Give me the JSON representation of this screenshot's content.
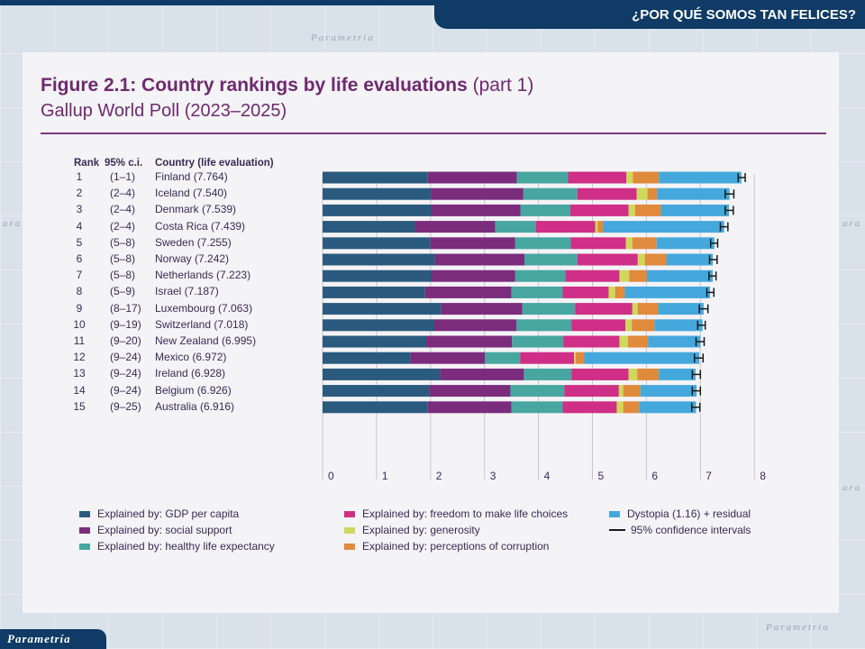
{
  "banner": {
    "title": "¿POR QUÉ SOMOS TAN FELICES?"
  },
  "logo": {
    "text": "Parametría"
  },
  "watermarks": [
    "Parametria",
    "Parametria",
    "ara",
    "ara",
    "ara"
  ],
  "figure": {
    "title": "Figure 2.1: Country rankings by life evaluations",
    "title_part": "(part 1)",
    "subtitle": "Gallup World Poll (2023–2025)"
  },
  "headers": {
    "rank": "Rank",
    "ci": "95% c.i.",
    "country": "Country (life evaluation)"
  },
  "colors": {
    "gdp": "#2a5b7e",
    "social": "#7b2c7d",
    "health": "#48a6a0",
    "freedom": "#cf2f86",
    "generosity": "#cfd85a",
    "corruption": "#e08a3c",
    "dystopia": "#45a8dc",
    "ci": "#1a1a1a",
    "banner": "#0f3b66",
    "title": "#6e2a6f"
  },
  "chart_data": {
    "type": "bar",
    "orientation": "horizontal",
    "stacked": true,
    "xlim": [
      0,
      8
    ],
    "xticks": [
      0,
      1,
      2,
      3,
      4,
      5,
      6,
      7,
      8
    ],
    "series_names": [
      "gdp",
      "social",
      "health",
      "freedom",
      "generosity",
      "corruption",
      "dystopia"
    ],
    "rows": [
      {
        "rank": "1",
        "ci": "(1–1)",
        "country": "Finland (7.764)",
        "score": 7.764,
        "ci_low": 7.7,
        "ci_high": 7.83,
        "components": [
          1.95,
          1.65,
          0.95,
          1.08,
          0.12,
          0.48,
          1.53
        ]
      },
      {
        "rank": "2",
        "ci": "(2–4)",
        "country": "Iceland (7.540)",
        "score": 7.54,
        "ci_low": 7.46,
        "ci_high": 7.62,
        "components": [
          2.01,
          1.71,
          1.0,
          1.1,
          0.2,
          0.18,
          1.34
        ]
      },
      {
        "rank": "3",
        "ci": "(2–4)",
        "country": "Denmark (7.539)",
        "score": 7.539,
        "ci_low": 7.46,
        "ci_high": 7.61,
        "components": [
          2.02,
          1.65,
          0.92,
          1.08,
          0.12,
          0.48,
          1.26
        ]
      },
      {
        "rank": "4",
        "ci": "(2–4)",
        "country": "Costa Rica (7.439)",
        "score": 7.439,
        "ci_low": 7.37,
        "ci_high": 7.51,
        "components": [
          1.72,
          1.48,
          0.75,
          1.1,
          0.05,
          0.1,
          2.24
        ]
      },
      {
        "rank": "5",
        "ci": "(5–8)",
        "country": "Sweden (7.255)",
        "score": 7.255,
        "ci_low": 7.19,
        "ci_high": 7.32,
        "components": [
          2.0,
          1.57,
          1.03,
          1.02,
          0.12,
          0.45,
          1.07
        ]
      },
      {
        "rank": "6",
        "ci": "(5–8)",
        "country": "Norway (7.242)",
        "score": 7.242,
        "ci_low": 7.17,
        "ci_high": 7.31,
        "components": [
          2.08,
          1.66,
          0.98,
          1.12,
          0.13,
          0.4,
          0.86
        ]
      },
      {
        "rank": "7",
        "ci": "(5–8)",
        "country": "Netherlands (7.223)",
        "score": 7.223,
        "ci_low": 7.16,
        "ci_high": 7.29,
        "components": [
          2.02,
          1.55,
          0.93,
          1.0,
          0.18,
          0.33,
          1.22
        ]
      },
      {
        "rank": "8",
        "ci": "(5–9)",
        "country": "Israel (7.187)",
        "score": 7.187,
        "ci_low": 7.12,
        "ci_high": 7.25,
        "components": [
          1.9,
          1.6,
          0.95,
          0.85,
          0.12,
          0.18,
          1.58
        ]
      },
      {
        "rank": "9",
        "ci": "(8–17)",
        "country": "Luxembourg (7.063)",
        "score": 7.063,
        "ci_low": 6.98,
        "ci_high": 7.14,
        "components": [
          2.2,
          1.5,
          0.98,
          1.06,
          0.1,
          0.38,
          0.84
        ]
      },
      {
        "rank": "10",
        "ci": "(9–19)",
        "country": "Switzerland (7.018)",
        "score": 7.018,
        "ci_low": 6.95,
        "ci_high": 7.09,
        "components": [
          2.07,
          1.52,
          1.02,
          1.0,
          0.12,
          0.42,
          0.89
        ]
      },
      {
        "rank": "11",
        "ci": "(9–20)",
        "country": "New Zealand (6.995)",
        "score": 6.995,
        "ci_low": 6.92,
        "ci_high": 7.07,
        "components": [
          1.92,
          1.59,
          0.95,
          1.04,
          0.16,
          0.37,
          0.97
        ]
      },
      {
        "rank": "12",
        "ci": "(9–24)",
        "country": "Mexico (6.972)",
        "score": 6.972,
        "ci_low": 6.89,
        "ci_high": 7.05,
        "components": [
          1.63,
          1.38,
          0.65,
          1.0,
          0.03,
          0.16,
          2.13
        ]
      },
      {
        "rank": "13",
        "ci": "(9–24)",
        "country": "Ireland (6.928)",
        "score": 6.928,
        "ci_low": 6.85,
        "ci_high": 7.0,
        "components": [
          2.18,
          1.55,
          0.88,
          1.06,
          0.16,
          0.4,
          0.68
        ]
      },
      {
        "rank": "14",
        "ci": "(9–24)",
        "country": "Belgium (6.926)",
        "score": 6.926,
        "ci_low": 6.85,
        "ci_high": 7.0,
        "components": [
          1.98,
          1.5,
          1.0,
          1.01,
          0.08,
          0.32,
          1.04
        ]
      },
      {
        "rank": "15",
        "ci": "(9–25)",
        "country": "Australia (6.916)",
        "score": 6.916,
        "ci_low": 6.84,
        "ci_high": 6.99,
        "components": [
          1.95,
          1.55,
          0.95,
          1.0,
          0.12,
          0.3,
          1.05
        ]
      }
    ],
    "legend": [
      {
        "key": "gdp",
        "label": "Explained by: GDP per capita"
      },
      {
        "key": "social",
        "label": "Explained by: social support"
      },
      {
        "key": "health",
        "label": "Explained by: healthy life expectancy"
      },
      {
        "key": "freedom",
        "label": "Explained by: freedom to make life choices"
      },
      {
        "key": "generosity",
        "label": "Explained by: generosity"
      },
      {
        "key": "corruption",
        "label": "Explained by: perceptions of corruption"
      },
      {
        "key": "dystopia",
        "label": "Dystopia (1.16) + residual"
      },
      {
        "key": "ci",
        "label": "95% confidence intervals"
      }
    ]
  }
}
